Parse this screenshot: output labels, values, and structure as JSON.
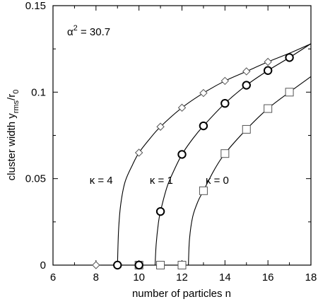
{
  "chart_data": {
    "type": "scatter",
    "xlabel": "number of particles n",
    "ylabel_main": "cluster width y",
    "ylabel_sub": "rms",
    "ylabel_tail": "/r",
    "ylabel_tail_sub": "0",
    "xlim": [
      6,
      18
    ],
    "ylim": [
      0,
      0.15
    ],
    "xticks": [
      6,
      8,
      10,
      12,
      14,
      16,
      18
    ],
    "yticks": [
      0,
      0.05,
      0.1,
      0.15
    ],
    "ytick_labels": [
      "0",
      "0.05",
      "0.1",
      "0.15"
    ],
    "annotation": {
      "alpha_base": "α",
      "alpha_exp": "2",
      "alpha_value": " = 30.7"
    },
    "series": [
      {
        "name": "κ = 4",
        "marker": "diamond",
        "points": [
          [
            8,
            0
          ],
          [
            9,
            0
          ],
          [
            10,
            0.065
          ],
          [
            11,
            0.08
          ],
          [
            12,
            0.091
          ],
          [
            13,
            0.0995
          ],
          [
            14,
            0.1065
          ],
          [
            15,
            0.112
          ],
          [
            16,
            0.1175
          ]
        ],
        "curve": [
          [
            9.0,
            0.0
          ],
          [
            9.05,
            0.02
          ],
          [
            9.15,
            0.035
          ],
          [
            9.35,
            0.048
          ],
          [
            9.7,
            0.058
          ],
          [
            10,
            0.065
          ],
          [
            10.5,
            0.073
          ],
          [
            11,
            0.08
          ],
          [
            12,
            0.091
          ],
          [
            13,
            0.0995
          ],
          [
            14,
            0.1065
          ],
          [
            15,
            0.112
          ],
          [
            16,
            0.1175
          ],
          [
            17,
            0.1225
          ],
          [
            18,
            0.128
          ]
        ]
      },
      {
        "name": "κ = 1",
        "marker": "circle",
        "points": [
          [
            9,
            0
          ],
          [
            10,
            0
          ],
          [
            11,
            0.031
          ],
          [
            12,
            0.064
          ],
          [
            13,
            0.0805
          ],
          [
            14,
            0.0935
          ],
          [
            15,
            0.104
          ],
          [
            16,
            0.1125
          ],
          [
            17,
            0.12
          ]
        ],
        "curve": [
          [
            10.75,
            0.0
          ],
          [
            10.8,
            0.012
          ],
          [
            10.9,
            0.024
          ],
          [
            11,
            0.031
          ],
          [
            11.3,
            0.045
          ],
          [
            11.6,
            0.054
          ],
          [
            12,
            0.064
          ],
          [
            12.5,
            0.073
          ],
          [
            13,
            0.0805
          ],
          [
            14,
            0.0935
          ],
          [
            15,
            0.104
          ],
          [
            16,
            0.1125
          ],
          [
            17,
            0.12
          ],
          [
            18,
            0.128
          ]
        ]
      },
      {
        "name": "κ = 0",
        "marker": "square",
        "points": [
          [
            10,
            0
          ],
          [
            11,
            0
          ],
          [
            12,
            0
          ],
          [
            13,
            0.043
          ],
          [
            14,
            0.0645
          ],
          [
            15,
            0.0785
          ],
          [
            16,
            0.0905
          ],
          [
            17,
            0.1
          ]
        ],
        "curve": [
          [
            12.3,
            0.0
          ],
          [
            12.35,
            0.015
          ],
          [
            12.5,
            0.028
          ],
          [
            12.75,
            0.037
          ],
          [
            13,
            0.043
          ],
          [
            13.5,
            0.055
          ],
          [
            14,
            0.0645
          ],
          [
            15,
            0.0785
          ],
          [
            16,
            0.0905
          ],
          [
            17,
            0.1
          ],
          [
            18,
            0.109
          ]
        ]
      }
    ],
    "labels": [
      {
        "text": "κ = 4",
        "x": 7.7,
        "y": 0.047
      },
      {
        "text": "κ = 1",
        "x": 10.5,
        "y": 0.047
      },
      {
        "text": "κ = 0",
        "x": 13.1,
        "y": 0.047
      }
    ]
  }
}
